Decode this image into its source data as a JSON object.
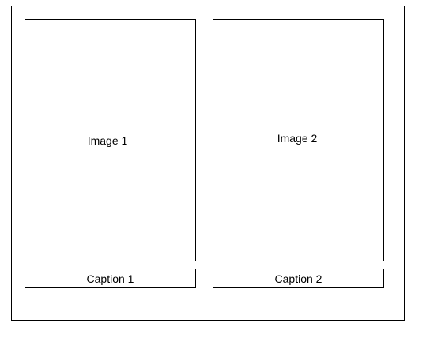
{
  "panels": [
    {
      "image_label": "Image 1",
      "caption": "Caption 1"
    },
    {
      "image_label": "Image 2",
      "caption": "Caption 2"
    }
  ]
}
